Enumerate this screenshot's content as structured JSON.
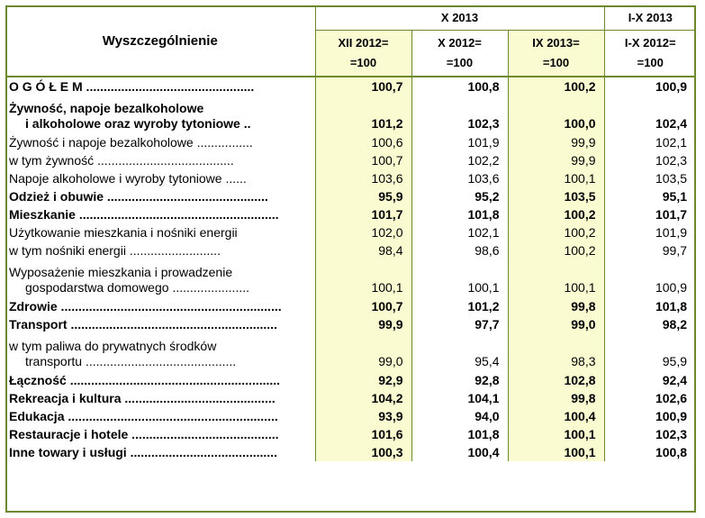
{
  "header": {
    "title": "Wyszczególnienie",
    "group1": "X 2013",
    "group2": "I-X 2013",
    "cols": [
      {
        "l1": "XII 2012=",
        "l2": "=100"
      },
      {
        "l1": "X 2012=",
        "l2": "=100"
      },
      {
        "l1": "IX 2013=",
        "l2": "=100"
      },
      {
        "l1": "I-X 2012=",
        "l2": "=100"
      }
    ]
  },
  "rows": [
    {
      "label": "O G Ó Ł E M ................................................",
      "values": [
        "100,7",
        "100,8",
        "100,2",
        "100,9"
      ]
    },
    {
      "label": "Żywność, napoje bezalkoholowe",
      "label2": "i alkoholowe oraz wyroby tytoniowe ..",
      "values": [
        "101,2",
        "102,3",
        "100,0",
        "102,4"
      ]
    },
    {
      "label": "Żywność i napoje bezalkoholowe ................",
      "values": [
        "100,6",
        "101,9",
        "99,9",
        "102,1"
      ]
    },
    {
      "label": "w tym żywność .......................................",
      "values": [
        "100,7",
        "102,2",
        "99,9",
        "102,3"
      ]
    },
    {
      "label": "Napoje alkoholowe i wyroby tytoniowe ......",
      "values": [
        "103,6",
        "103,6",
        "100,1",
        "103,5"
      ]
    },
    {
      "label": "Odzież i obuwie ..............................................",
      "values": [
        "95,9",
        "95,2",
        "103,5",
        "95,1"
      ]
    },
    {
      "label": "Mieszkanie .........................................................",
      "values": [
        "101,7",
        "101,8",
        "100,2",
        "101,7"
      ]
    },
    {
      "label": "Użytkowanie mieszkania i nośniki energii",
      "values": [
        "102,0",
        "102,1",
        "100,2",
        "101,9"
      ]
    },
    {
      "label": "w tym nośniki energii ..........................",
      "values": [
        "98,4",
        "98,6",
        "100,2",
        "99,7"
      ]
    },
    {
      "label": "Wyposażenie  mieszkania  i  prowadzenie",
      "label2": "gospodarstwa domowego ......................",
      "values": [
        "100,1",
        "100,1",
        "100,1",
        "100,9"
      ]
    },
    {
      "label": "Zdrowie ...............................................................",
      "values": [
        "100,7",
        "101,2",
        "99,8",
        "101,8"
      ]
    },
    {
      "label": "Transport ...........................................................",
      "values": [
        "99,9",
        "97,7",
        "99,0",
        "98,2"
      ]
    },
    {
      "label": "w  tym  paliwa  do  prywatnych  środków",
      "label2": "transportu ...........................................",
      "values": [
        "99,0",
        "95,4",
        "98,3",
        "95,9"
      ]
    },
    {
      "label": "Łączność ............................................................",
      "values": [
        "92,9",
        "92,8",
        "102,8",
        "92,4"
      ]
    },
    {
      "label": "Rekreacja i kultura ...........................................",
      "values": [
        "104,2",
        "104,1",
        "99,8",
        "102,6"
      ]
    },
    {
      "label": "Edukacja ............................................................",
      "values": [
        "93,9",
        "94,0",
        "100,4",
        "100,9"
      ]
    },
    {
      "label": "Restauracje i hotele ..........................................",
      "values": [
        "101,6",
        "101,8",
        "100,1",
        "102,3"
      ]
    },
    {
      "label": "Inne towary i usługi ..........................................",
      "values": [
        "100,3",
        "100,4",
        "100,1",
        "100,8"
      ]
    }
  ],
  "colors": {
    "border": "#6d8a2a",
    "highlight": "#fbfbd2"
  }
}
